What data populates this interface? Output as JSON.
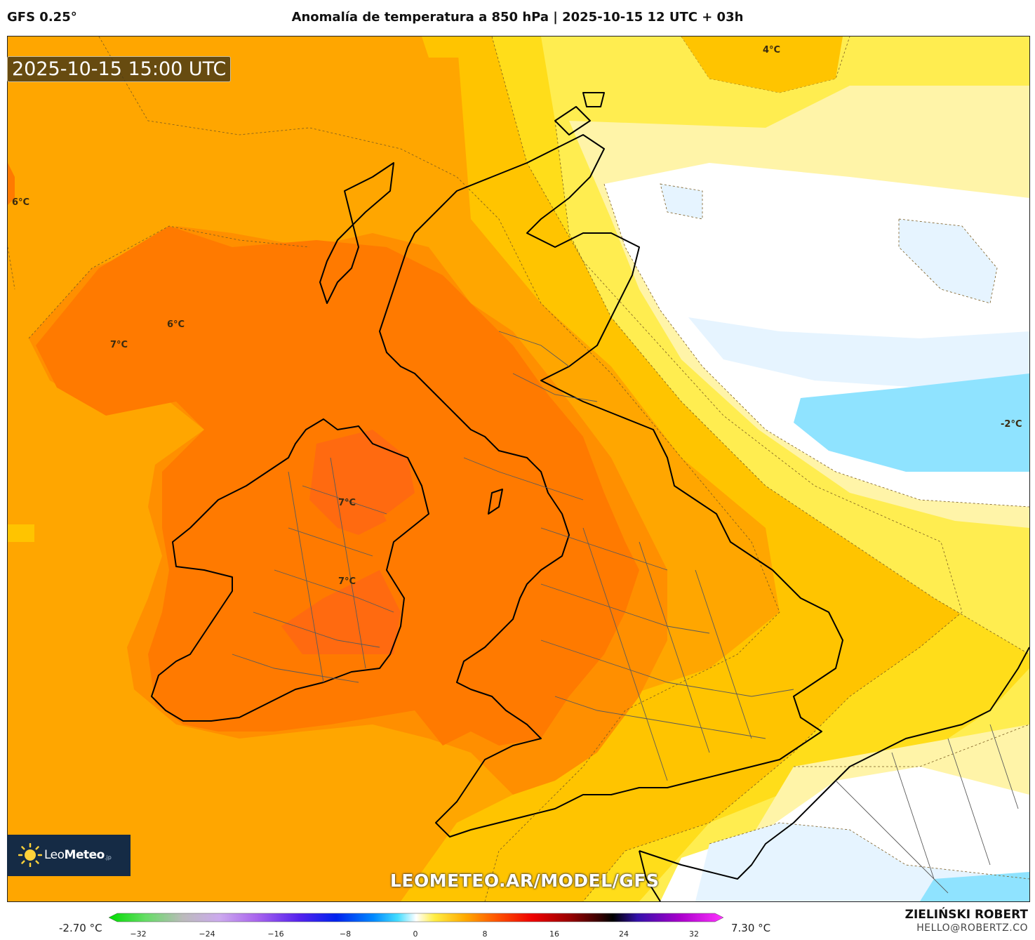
{
  "header": {
    "model": "GFS 0.25°",
    "title": "Anomalía de temperatura a 850 hPa | 2025-10-15 12 UTC + 03h"
  },
  "map": {
    "valid_time": "2025-10-15 15:00 UTC",
    "watermark": "LEOMETEO.AR/MODEL/GFS",
    "logo": {
      "name": "Leo",
      "name_bold": "Meteo",
      "suffix": ".jp"
    },
    "isotherm_labels": [
      {
        "text": "4°C"
      },
      {
        "text": "6°C"
      },
      {
        "text": "6°C"
      },
      {
        "text": "7°C"
      },
      {
        "text": "7°C"
      },
      {
        "text": "7°C"
      },
      {
        "text": "-2°C"
      }
    ]
  },
  "colorbar": {
    "min_value": "-2.70 °C",
    "max_value": "7.30 °C",
    "ticks": [
      "−32",
      "−24",
      "−16",
      "−8",
      "0",
      "8",
      "16",
      "24",
      "32"
    ]
  },
  "footer": {
    "author": "ZIELIŃSKI ROBERT",
    "email": "HELLO@ROBERTZ.CO"
  },
  "colors": {
    "anom_7": "#ff7a00",
    "anom_6": "#ff8f00",
    "anom_5": "#ffa600",
    "anom_4": "#ffc400",
    "anom_3": "#ffdd1a",
    "anom_2": "#ffed50",
    "anom_1": "#fff4a8",
    "anom_0": "#ffffff",
    "anom_m1": "#e6f4ff",
    "anom_m2": "#8fe3ff"
  }
}
